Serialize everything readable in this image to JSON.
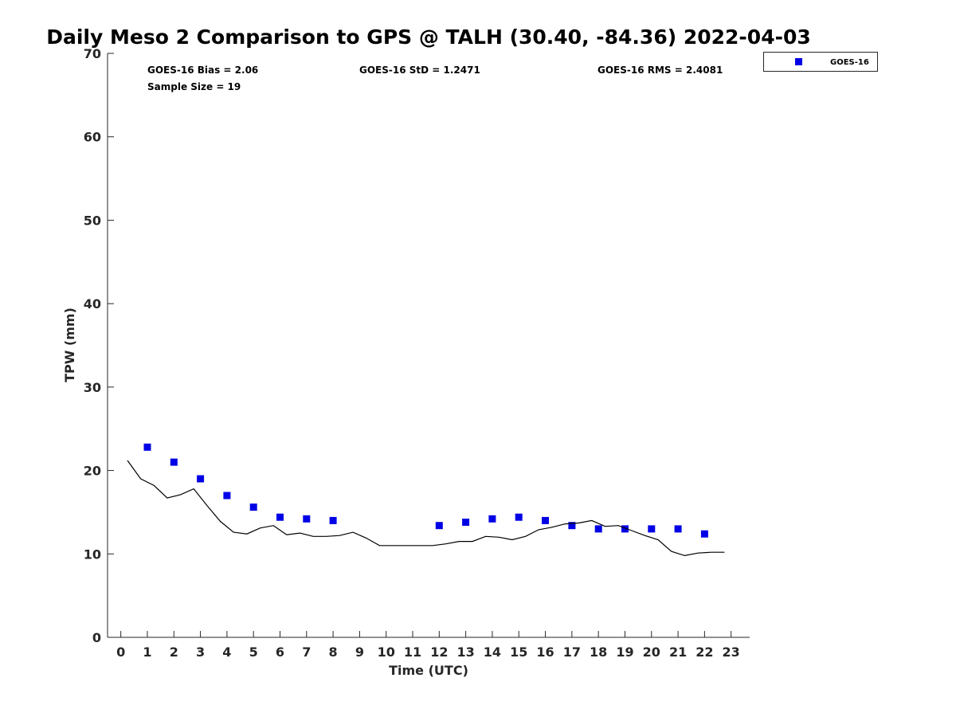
{
  "chart_data": {
    "type": "scatter",
    "title": "Daily Meso 2 Comparison to GPS @ TALH (30.40, -84.36) 2022-04-03",
    "xlabel": "Time (UTC)",
    "ylabel": "TPW (mm)",
    "xlim": [
      -0.5,
      23.7
    ],
    "ylim": [
      0,
      70
    ],
    "x_ticks": [
      0,
      1,
      2,
      3,
      4,
      5,
      6,
      7,
      8,
      9,
      10,
      11,
      12,
      13,
      14,
      15,
      16,
      17,
      18,
      19,
      20,
      21,
      22,
      23
    ],
    "y_ticks": [
      0,
      10,
      20,
      30,
      40,
      50,
      60,
      70
    ],
    "grid": false,
    "legend_position": "top-right",
    "stats": {
      "bias": "GOES-16 Bias = 2.06",
      "sample_size": "Sample Size = 19",
      "std": "GOES-16 StD = 1.2471",
      "rms": "GOES-16 RMS = 2.4081"
    },
    "series": [
      {
        "name": "GOES-16",
        "kind": "scatter",
        "marker": "square",
        "color": "#0000e6",
        "x": [
          1,
          2,
          3,
          4,
          5,
          6,
          7,
          8,
          12,
          13,
          14,
          15,
          16,
          17,
          18,
          19,
          20,
          21,
          22
        ],
        "y": [
          22.8,
          21.0,
          19.0,
          17.0,
          15.6,
          14.4,
          14.2,
          14.0,
          13.4,
          13.8,
          14.2,
          14.4,
          14.0,
          13.4,
          13.0,
          13.0,
          13.0,
          13.0,
          12.4
        ]
      },
      {
        "kind": "line",
        "color": "#000000",
        "x": [
          0.25,
          0.75,
          1.25,
          1.75,
          2.25,
          2.75,
          3.25,
          3.75,
          4.25,
          4.75,
          5.25,
          5.75,
          6.25,
          6.75,
          7.25,
          7.75,
          8.25,
          8.75,
          9.25,
          9.75,
          10.25,
          10.75,
          11.25,
          11.75,
          12.25,
          12.75,
          13.25,
          13.75,
          14.25,
          14.75,
          15.25,
          15.75,
          16.25,
          16.75,
          17.25,
          17.75,
          18.25,
          18.75,
          19.25,
          19.75,
          20.25,
          20.75,
          21.25,
          21.75,
          22.25,
          22.75
        ],
        "y": [
          21.2,
          19.0,
          18.2,
          16.7,
          17.1,
          17.8,
          15.8,
          13.9,
          12.6,
          12.4,
          13.1,
          13.4,
          12.3,
          12.5,
          12.1,
          12.1,
          12.2,
          12.6,
          11.9,
          11.0,
          11.0,
          11.0,
          11.0,
          11.0,
          11.2,
          11.5,
          11.5,
          12.1,
          12.0,
          11.7,
          12.1,
          12.9,
          13.2,
          13.6,
          13.7,
          14.0,
          13.3,
          13.4,
          12.8,
          12.2,
          11.7,
          10.3,
          9.8,
          10.1,
          10.2,
          10.2
        ]
      }
    ]
  }
}
